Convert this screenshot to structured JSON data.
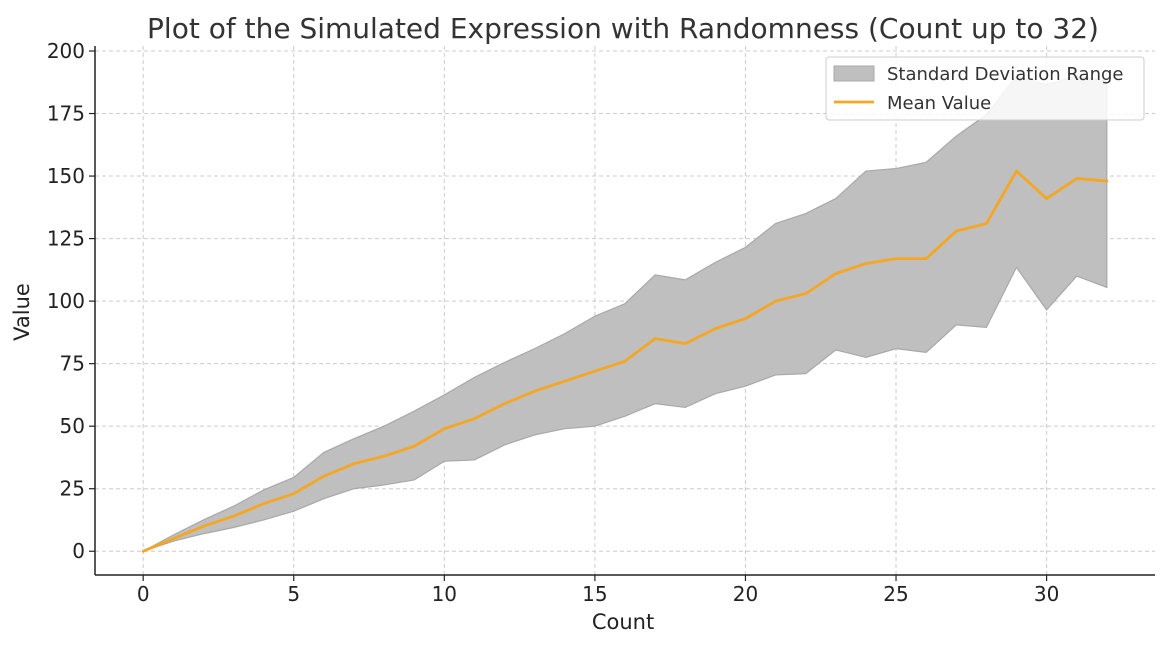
{
  "chart_data": {
    "type": "area",
    "title": "Plot of the Simulated Expression with Randomness (Count up to 32)",
    "xlabel": "Count",
    "ylabel": "Value",
    "xlim": [
      -1.6,
      33.6
    ],
    "ylim": [
      -9.5,
      202
    ],
    "xticks": [
      0,
      5,
      10,
      15,
      20,
      25,
      30
    ],
    "yticks": [
      0,
      25,
      50,
      75,
      100,
      125,
      150,
      175,
      200
    ],
    "grid": true,
    "legend_position": "top-right",
    "x": [
      0,
      1,
      2,
      3,
      4,
      5,
      6,
      7,
      8,
      9,
      10,
      11,
      12,
      13,
      14,
      15,
      16,
      17,
      18,
      19,
      20,
      21,
      22,
      23,
      24,
      25,
      26,
      27,
      28,
      29,
      30,
      31,
      32
    ],
    "series": [
      {
        "name": "Mean Value",
        "color": "#f5a623",
        "values": [
          0,
          5,
          10,
          14,
          19,
          23,
          30,
          35,
          38,
          42,
          49,
          53,
          59,
          64,
          68,
          72,
          76,
          85,
          83,
          89,
          93,
          100,
          103,
          111,
          115,
          117,
          117,
          128,
          131,
          152,
          141,
          149,
          148
        ]
      }
    ],
    "band": {
      "name": "Standard Deviation Range",
      "color": "#bfbfbf",
      "edge_color": "#a8a8a8",
      "lower": [
        0,
        4,
        7,
        9.5,
        12.5,
        16,
        21,
        25,
        26.5,
        28.5,
        36,
        36.5,
        42.5,
        46.5,
        49,
        50,
        54,
        59,
        57.5,
        63,
        66,
        70.5,
        71,
        80.5,
        77.5,
        81,
        79.5,
        90.5,
        89.5,
        113.5,
        96.5,
        110,
        105.5
      ],
      "upper": [
        0,
        6.5,
        12.5,
        18,
        24.5,
        29.5,
        39.5,
        45,
        50,
        56,
        62.5,
        69.5,
        75.5,
        81,
        87,
        94,
        99,
        110.5,
        108.5,
        115.5,
        121.5,
        131,
        135,
        141,
        152,
        153,
        155.5,
        166,
        174.5,
        190,
        186.5,
        190,
        188
      ]
    },
    "legend": [
      "Standard Deviation Range",
      "Mean Value"
    ]
  }
}
